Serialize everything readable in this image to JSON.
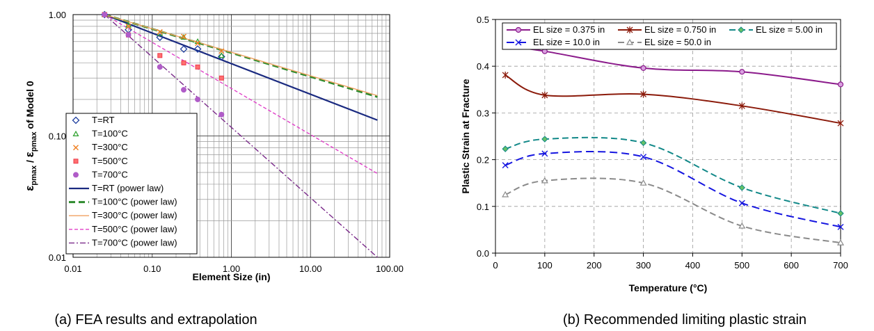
{
  "chart_data": [
    {
      "type": "scatter",
      "scale": "log-log",
      "caption": "(a) FEA results and extrapolation",
      "xlabel": "Element Size (in)",
      "ylabel_html": [
        "ε",
        "pmax",
        " / ",
        "ε",
        "pmax",
        " of Model 0"
      ],
      "xlim": [
        0.01,
        100
      ],
      "ylim": [
        0.01,
        1
      ],
      "x_ticks": [
        "0.01",
        "0.10",
        "1.00",
        "10.00",
        "100.00"
      ],
      "y_ticks": [
        "0.01",
        "0.10",
        "1.00"
      ],
      "grid": true,
      "legend_position": "lower-left",
      "series": [
        {
          "name": "T=RT",
          "marker": "diamond",
          "color": "#1f3f9f",
          "x": [
            0.025,
            0.05,
            0.125,
            0.25,
            0.375,
            0.75
          ],
          "y": [
            1.0,
            0.75,
            0.65,
            0.52,
            0.52,
            0.45
          ]
        },
        {
          "name": "T=100°C",
          "marker": "triangle",
          "color": "#2ca02c",
          "x": [
            0.025,
            0.05,
            0.125,
            0.25,
            0.375,
            0.75
          ],
          "y": [
            1.0,
            0.82,
            0.7,
            0.65,
            0.6,
            0.46
          ]
        },
        {
          "name": "T=300°C",
          "marker": "x",
          "color": "#f07f20",
          "x": [
            0.025,
            0.05,
            0.125,
            0.25,
            0.375,
            0.75
          ],
          "y": [
            1.0,
            0.8,
            0.72,
            0.66,
            0.58,
            0.5
          ]
        },
        {
          "name": "T=500°C",
          "marker": "square",
          "color": "#ee3a4a",
          "x": [
            0.025,
            0.05,
            0.125,
            0.25,
            0.375,
            0.75
          ],
          "y": [
            1.0,
            0.68,
            0.46,
            0.4,
            0.37,
            0.3
          ]
        },
        {
          "name": "T=700°C",
          "marker": "circle",
          "color": "#b05cc8",
          "x": [
            0.025,
            0.05,
            0.125,
            0.25,
            0.375,
            0.75
          ],
          "y": [
            1.0,
            0.68,
            0.37,
            0.24,
            0.2,
            0.15
          ]
        }
      ],
      "fits": [
        {
          "name": "T=RT (power law)",
          "color": "#1a2a80",
          "dash": "",
          "width": 2.2,
          "x": [
            0.025,
            70
          ],
          "y": [
            1.0,
            0.135
          ]
        },
        {
          "name": "T=100°C (power law)",
          "color": "#2e8b2e",
          "dash": "9,5",
          "width": 3,
          "x": [
            0.025,
            70
          ],
          "y": [
            1.0,
            0.21
          ]
        },
        {
          "name": "T=300°C (power law)",
          "color": "#f0a060",
          "dash": "",
          "width": 1.4,
          "x": [
            0.025,
            70
          ],
          "y": [
            1.0,
            0.215
          ]
        },
        {
          "name": "T=500°C (power law)",
          "color": "#e040c8",
          "dash": "5,3",
          "width": 1.4,
          "x": [
            0.025,
            70
          ],
          "y": [
            1.0,
            0.049
          ]
        },
        {
          "name": "T=700°C (power law)",
          "color": "#7a2a8a",
          "dash": "8,3,2,3",
          "width": 1.4,
          "x": [
            0.025,
            70
          ],
          "y": [
            1.0,
            0.01
          ]
        }
      ]
    },
    {
      "type": "line",
      "caption": "(b) Recommended limiting plastic strain",
      "xlabel": "Temperature (°C)",
      "ylabel": "Plastic Strain at Fracture",
      "xlim": [
        0,
        700
      ],
      "ylim": [
        0,
        0.5
      ],
      "x_ticks": [
        "0",
        "100",
        "200",
        "300",
        "400",
        "500",
        "600",
        "700"
      ],
      "y_ticks": [
        "0.0",
        "0.1",
        "0.2",
        "0.3",
        "0.4",
        "0.5"
      ],
      "grid": true,
      "legend_position": "top",
      "x": [
        20,
        100,
        300,
        500,
        700
      ],
      "series": [
        {
          "name": "EL size = 0.375 in",
          "color": "#8b1a8b",
          "marker": "circle",
          "dash": "",
          "values": [
            0.443,
            0.432,
            0.396,
            0.388,
            0.361
          ]
        },
        {
          "name": "EL size = 0.750 in",
          "color": "#8b1a0a",
          "marker": "star",
          "dash": "",
          "values": [
            0.381,
            0.338,
            0.34,
            0.315,
            0.278
          ]
        },
        {
          "name": "EL size = 5.00 in",
          "color": "#118888",
          "marker": "diamond",
          "dash": "9,5",
          "values": [
            0.223,
            0.244,
            0.236,
            0.14,
            0.085
          ]
        },
        {
          "name": "EL size = 10.0 in",
          "color": "#1515e0",
          "marker": "x",
          "dash": "11,6",
          "values": [
            0.188,
            0.213,
            0.206,
            0.107,
            0.056
          ]
        },
        {
          "name": "EL size = 50.0 in",
          "color": "#8a8a8a",
          "marker": "triangle",
          "dash": "9,5",
          "values": [
            0.125,
            0.155,
            0.15,
            0.058,
            0.022
          ]
        }
      ]
    }
  ]
}
